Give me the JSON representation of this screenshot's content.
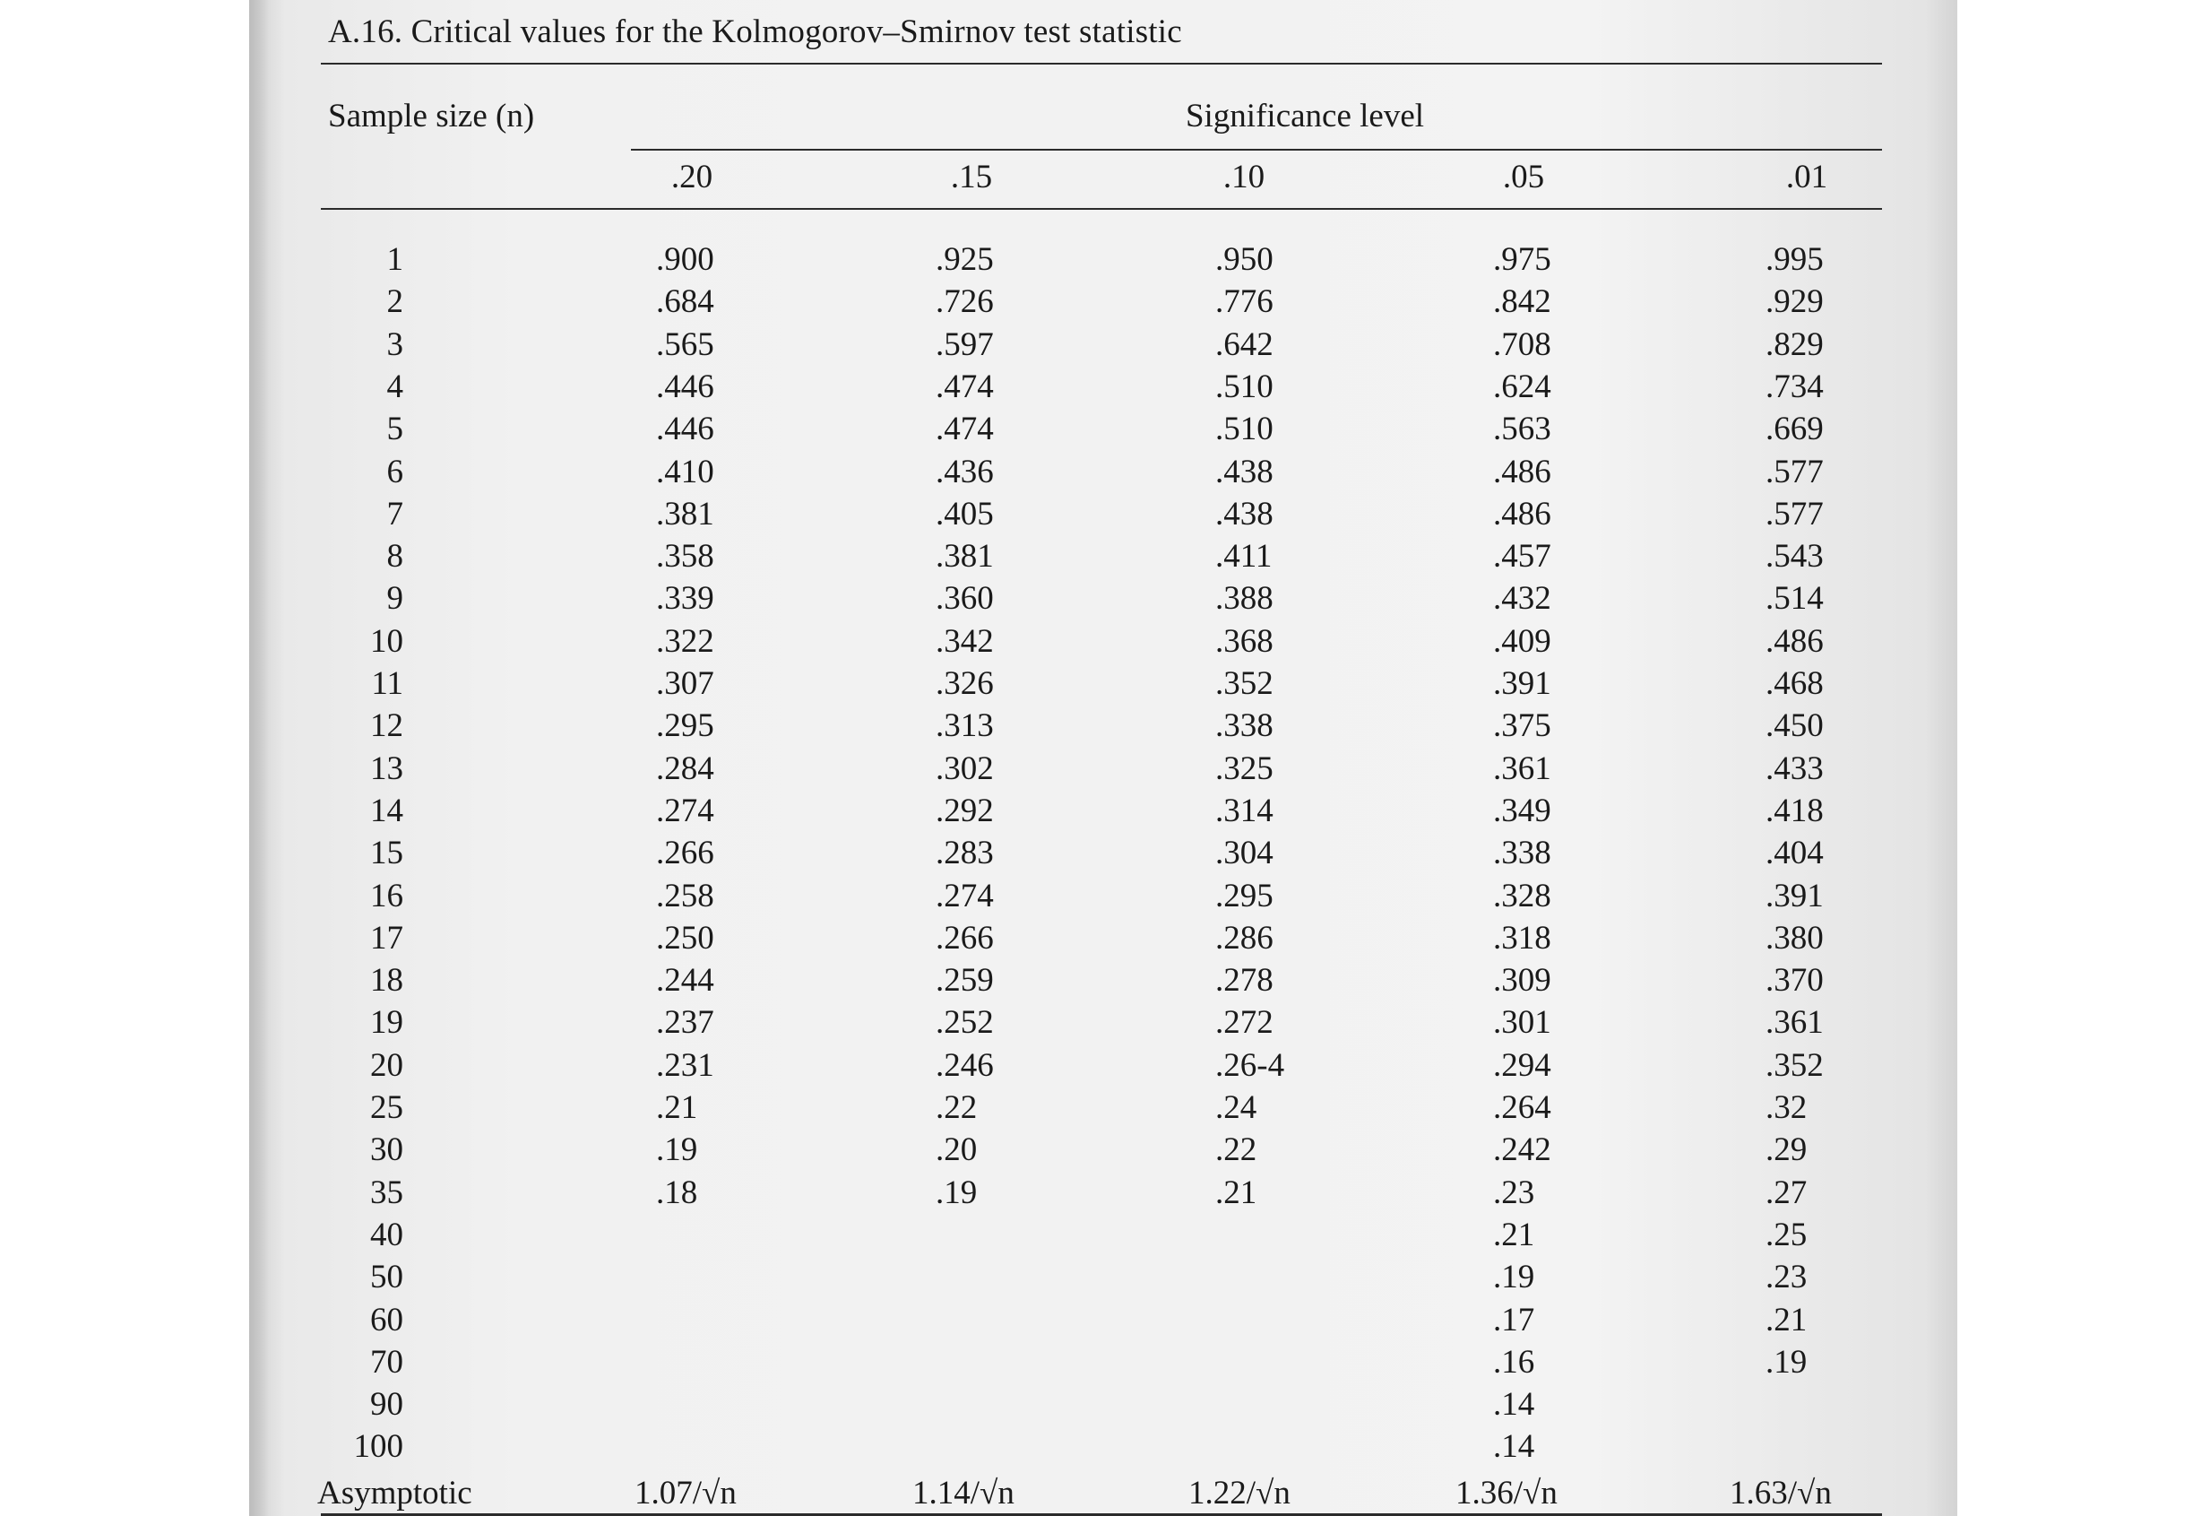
{
  "title": "A.16. Critical values for the Kolmogorov–Smirnov test statistic",
  "header": {
    "sample_size_label": "Sample size (n)",
    "significance_label": "Significance level",
    "levels": [
      ".20",
      ".15",
      ".10",
      ".05",
      ".01"
    ]
  },
  "rows": [
    {
      "n": "1",
      "v": [
        ".900",
        ".925",
        ".950",
        ".975",
        ".995"
      ]
    },
    {
      "n": "2",
      "v": [
        ".684",
        ".726",
        ".776",
        ".842",
        ".929"
      ]
    },
    {
      "n": "3",
      "v": [
        ".565",
        ".597",
        ".642",
        ".708",
        ".829"
      ]
    },
    {
      "n": "4",
      "v": [
        ".446",
        ".474",
        ".510",
        ".624",
        ".734"
      ]
    },
    {
      "n": "5",
      "v": [
        ".446",
        ".474",
        ".510",
        ".563",
        ".669"
      ]
    },
    {
      "n": "6",
      "v": [
        ".410",
        ".436",
        ".438",
        ".486",
        ".577"
      ]
    },
    {
      "n": "7",
      "v": [
        ".381",
        ".405",
        ".438",
        ".486",
        ".577"
      ]
    },
    {
      "n": "8",
      "v": [
        ".358",
        ".381",
        ".411",
        ".457",
        ".543"
      ]
    },
    {
      "n": "9",
      "v": [
        ".339",
        ".360",
        ".388",
        ".432",
        ".514"
      ]
    },
    {
      "n": "10",
      "v": [
        ".322",
        ".342",
        ".368",
        ".409",
        ".486"
      ]
    },
    {
      "n": "11",
      "v": [
        ".307",
        ".326",
        ".352",
        ".391",
        ".468"
      ]
    },
    {
      "n": "12",
      "v": [
        ".295",
        ".313",
        ".338",
        ".375",
        ".450"
      ]
    },
    {
      "n": "13",
      "v": [
        ".284",
        ".302",
        ".325",
        ".361",
        ".433"
      ]
    },
    {
      "n": "14",
      "v": [
        ".274",
        ".292",
        ".314",
        ".349",
        ".418"
      ]
    },
    {
      "n": "15",
      "v": [
        ".266",
        ".283",
        ".304",
        ".338",
        ".404"
      ]
    },
    {
      "n": "16",
      "v": [
        ".258",
        ".274",
        ".295",
        ".328",
        ".391"
      ]
    },
    {
      "n": "17",
      "v": [
        ".250",
        ".266",
        ".286",
        ".318",
        ".380"
      ]
    },
    {
      "n": "18",
      "v": [
        ".244",
        ".259",
        ".278",
        ".309",
        ".370"
      ]
    },
    {
      "n": "19",
      "v": [
        ".237",
        ".252",
        ".272",
        ".301",
        ".361"
      ]
    },
    {
      "n": "20",
      "v": [
        ".231",
        ".246",
        ".26-4",
        ".294",
        ".352"
      ]
    },
    {
      "n": "25",
      "v": [
        ".21",
        ".22",
        ".24",
        ".264",
        ".32"
      ]
    },
    {
      "n": "30",
      "v": [
        ".19",
        ".20",
        ".22",
        ".242",
        ".29"
      ]
    },
    {
      "n": "35",
      "v": [
        ".18",
        ".19",
        ".21",
        ".23",
        ".27"
      ]
    },
    {
      "n": "40",
      "v": [
        "",
        "",
        "",
        ".21",
        ".25"
      ]
    },
    {
      "n": "50",
      "v": [
        "",
        "",
        "",
        ".19",
        ".23"
      ]
    },
    {
      "n": "60",
      "v": [
        "",
        "",
        "",
        ".17",
        ".21"
      ]
    },
    {
      "n": "70",
      "v": [
        "",
        "",
        "",
        ".16",
        ".19"
      ]
    },
    {
      "n": "90",
      "v": [
        "",
        "",
        "",
        ".14",
        ""
      ]
    },
    {
      "n": "100",
      "v": [
        "",
        "",
        "",
        ".14",
        ""
      ]
    }
  ],
  "asymptotic": {
    "label": "Asymptotic",
    "v": [
      "1.07/√n",
      "1.14/√n",
      "1.22/√n",
      "1.36/√n",
      "1.63/√n"
    ]
  }
}
